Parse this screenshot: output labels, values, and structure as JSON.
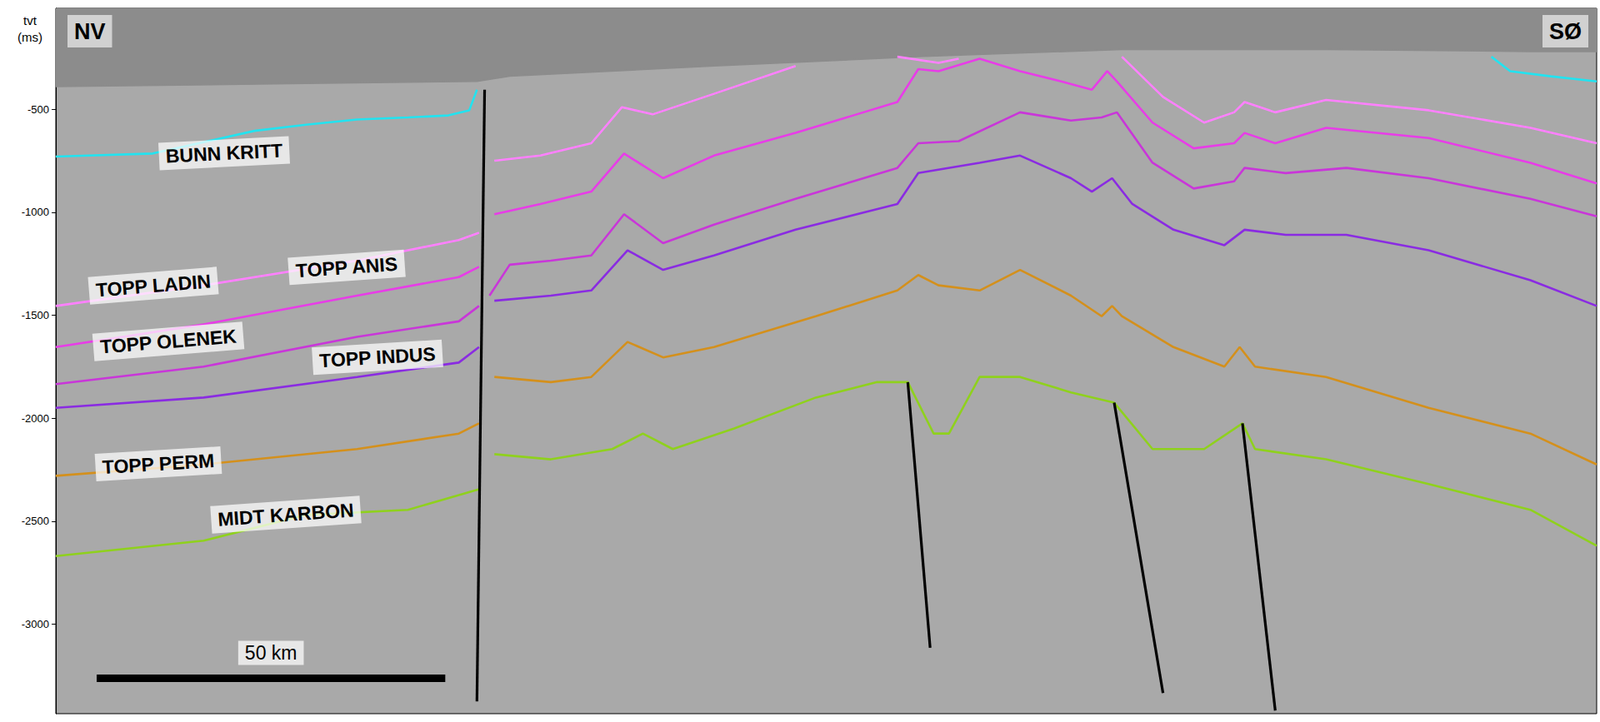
{
  "chart_data": {
    "type": "line",
    "y_label": "tvt (ms)",
    "corner_labels": {
      "left": "NV",
      "right": "SØ"
    },
    "scale_bar": {
      "label": "50 km",
      "value": 50
    },
    "xlim": [
      0,
      221
    ],
    "ylim": [
      -3435,
      -10
    ],
    "yticks": [
      -3000,
      -2500,
      -2000,
      -1500,
      -1000,
      -500
    ],
    "tick_labels": "y",
    "grid": false,
    "series": [
      {
        "type": "area",
        "color": "#8c8c8c",
        "x": [
          0,
          35.9,
          60.4,
          65.1,
          94.4,
          123.7,
          152.9,
          182.2,
          211.5,
          221.0
        ],
        "values": [
          -390,
          -375,
          -365,
          -340,
          -290,
          -245,
          -210,
          -210,
          -220,
          -220
        ]
      },
      {
        "name": "BUNN KRITT",
        "type": "line",
        "color": "#22e3f0",
        "x": [
          0,
          13.9,
          28.5,
          35.9,
          43.2,
          50.5,
          56.3,
          59.3,
          60.4,
          61.5,
          205.9,
          208.6,
          214.4,
          221.0
        ],
        "values": [
          -730,
          -715,
          -605,
          -575,
          -550,
          -540,
          -530,
          -505,
          -405,
          null,
          -245,
          -315,
          -340,
          -365
        ]
      },
      {
        "name": "TOPP LADIN",
        "type": "line",
        "color": "#ff80ff",
        "x": [
          0,
          21.2,
          43.2,
          57.8,
          60.7,
          61.5,
          62.9,
          69.5,
          76.8,
          81.2,
          85.6,
          94.4,
          106.1,
          113,
          120.7,
          126.6,
          129.5,
          140,
          152.9,
          158.8,
          164.7,
          169.0,
          170.5,
          174.9,
          182.2,
          196.9,
          211.5,
          221.0
        ],
        "values": [
          -1455,
          -1355,
          -1235,
          -1135,
          -1100,
          null,
          -750,
          -725,
          -665,
          -490,
          -525,
          -425,
          -290,
          null,
          -245,
          -275,
          -255,
          null,
          -245,
          -440,
          -565,
          -515,
          -465,
          -515,
          -455,
          -505,
          -590,
          -665
        ]
      },
      {
        "name": "TOPP ANIS",
        "type": "line",
        "color": "#e83ce8",
        "x": [
          0,
          21.2,
          43.2,
          57.8,
          60.7,
          61.5,
          62.9,
          69.5,
          76.8,
          81.5,
          87.1,
          94.4,
          106.1,
          120.7,
          123.7,
          126.6,
          132.5,
          138.3,
          144.2,
          148.6,
          150.8,
          152.2,
          157.3,
          163.2,
          169.0,
          170.5,
          174.9,
          182.2,
          196.9,
          211.5,
          221.0
        ],
        "values": [
          -1655,
          -1545,
          -1405,
          -1315,
          -1265,
          null,
          -1010,
          -960,
          -900,
          -715,
          -835,
          -725,
          -615,
          -465,
          -305,
          -315,
          -255,
          -315,
          -365,
          -405,
          -315,
          -365,
          -565,
          -690,
          -665,
          -615,
          -665,
          -590,
          -640,
          -760,
          -860
        ]
      },
      {
        "name": "TOPP OLENEK",
        "type": "line",
        "color": "#c936d9",
        "x": [
          0,
          21.2,
          43.2,
          57.8,
          60.7,
          61.5,
          62.2,
          65.1,
          71.0,
          76.8,
          81.5,
          87.1,
          94.4,
          106.1,
          120.7,
          123.7,
          129.5,
          138.3,
          145.6,
          150.0,
          152.2,
          157.3,
          163.2,
          169.0,
          170.5,
          176.4,
          185.1,
          196.9,
          211.5,
          221.0
        ],
        "values": [
          -1835,
          -1750,
          -1605,
          -1530,
          -1455,
          null,
          -1405,
          -1255,
          -1235,
          -1210,
          -1010,
          -1150,
          -1060,
          -935,
          -785,
          -665,
          -655,
          -515,
          -555,
          -540,
          -515,
          -760,
          -885,
          -850,
          -785,
          -810,
          -785,
          -835,
          -935,
          -1020
        ]
      },
      {
        "name": "TOPP INDUS",
        "type": "line",
        "color": "#8a2be2",
        "x": [
          0,
          21.2,
          43.2,
          57.8,
          60.7,
          61.5,
          62.9,
          71.0,
          76.8,
          82.0,
          87.1,
          94.4,
          106.1,
          120.7,
          123.7,
          132.5,
          138.3,
          145.6,
          148.6,
          151.5,
          154.4,
          160.3,
          167.6,
          170.5,
          176.4,
          185.1,
          196.9,
          211.5,
          221.0
        ],
        "values": [
          -1950,
          -1900,
          -1800,
          -1730,
          -1655,
          null,
          -1430,
          -1405,
          -1380,
          -1185,
          -1280,
          -1210,
          -1085,
          -960,
          -810,
          -760,
          -725,
          -835,
          -900,
          -835,
          -960,
          -1085,
          -1160,
          -1085,
          -1110,
          -1110,
          -1185,
          -1330,
          -1455
        ]
      },
      {
        "name": "TOPP PERM",
        "type": "line",
        "color": "#d4901c",
        "x": [
          0,
          21.2,
          43.2,
          57.8,
          60.7,
          61.5,
          62.9,
          71.0,
          76.8,
          82.0,
          87.1,
          94.4,
          109.0,
          120.7,
          123.7,
          126.6,
          132.5,
          138.3,
          145.6,
          150.0,
          151.5,
          152.9,
          160.3,
          167.6,
          169.8,
          172.0,
          182.2,
          196.9,
          211.5,
          221.0
        ],
        "values": [
          -2280,
          -2225,
          -2150,
          -2075,
          -2025,
          null,
          -1800,
          -1825,
          -1800,
          -1630,
          -1705,
          -1655,
          -1505,
          -1380,
          -1305,
          -1355,
          -1380,
          -1280,
          -1405,
          -1505,
          -1455,
          -1505,
          -1655,
          -1750,
          -1655,
          -1750,
          -1800,
          -1950,
          -2075,
          -2225
        ]
      },
      {
        "name": "MIDT KARBON",
        "type": "line",
        "color": "#8fd11d",
        "x": [
          0,
          21.2,
          35.9,
          50.5,
          60.7,
          61.5,
          62.9,
          71.0,
          79.8,
          84.2,
          88.5,
          97.3,
          109.0,
          117.8,
          122.2,
          125.9,
          128.1,
          132.5,
          138.3,
          145.6,
          151.8,
          157.3,
          164.7,
          170.2,
          172.0,
          182.2,
          196.9,
          211.5,
          221.0
        ],
        "values": [
          -2670,
          -2595,
          -2470,
          -2445,
          -2345,
          null,
          -2175,
          -2200,
          -2150,
          -2075,
          -2150,
          -2050,
          -1900,
          -1825,
          -1825,
          -2075,
          -2075,
          -1800,
          -1800,
          -1875,
          -1925,
          -2150,
          -2150,
          -2025,
          -2150,
          -2200,
          -2320,
          -2445,
          -2620
        ]
      },
      {
        "type": "line",
        "color": "#000000",
        "x": [
          61.5,
          60.4
        ],
        "values": [
          -405,
          -3375
        ]
      },
      {
        "type": "line",
        "color": "#000000",
        "x": [
          122.2,
          125.4
        ],
        "values": [
          -1825,
          -3115
        ]
      },
      {
        "type": "line",
        "color": "#000000",
        "x": [
          151.8,
          158.8
        ],
        "values": [
          -1925,
          -3335
        ]
      },
      {
        "type": "line",
        "color": "#000000",
        "x": [
          170.2,
          174.9
        ],
        "values": [
          -2025,
          -3420
        ]
      }
    ]
  }
}
